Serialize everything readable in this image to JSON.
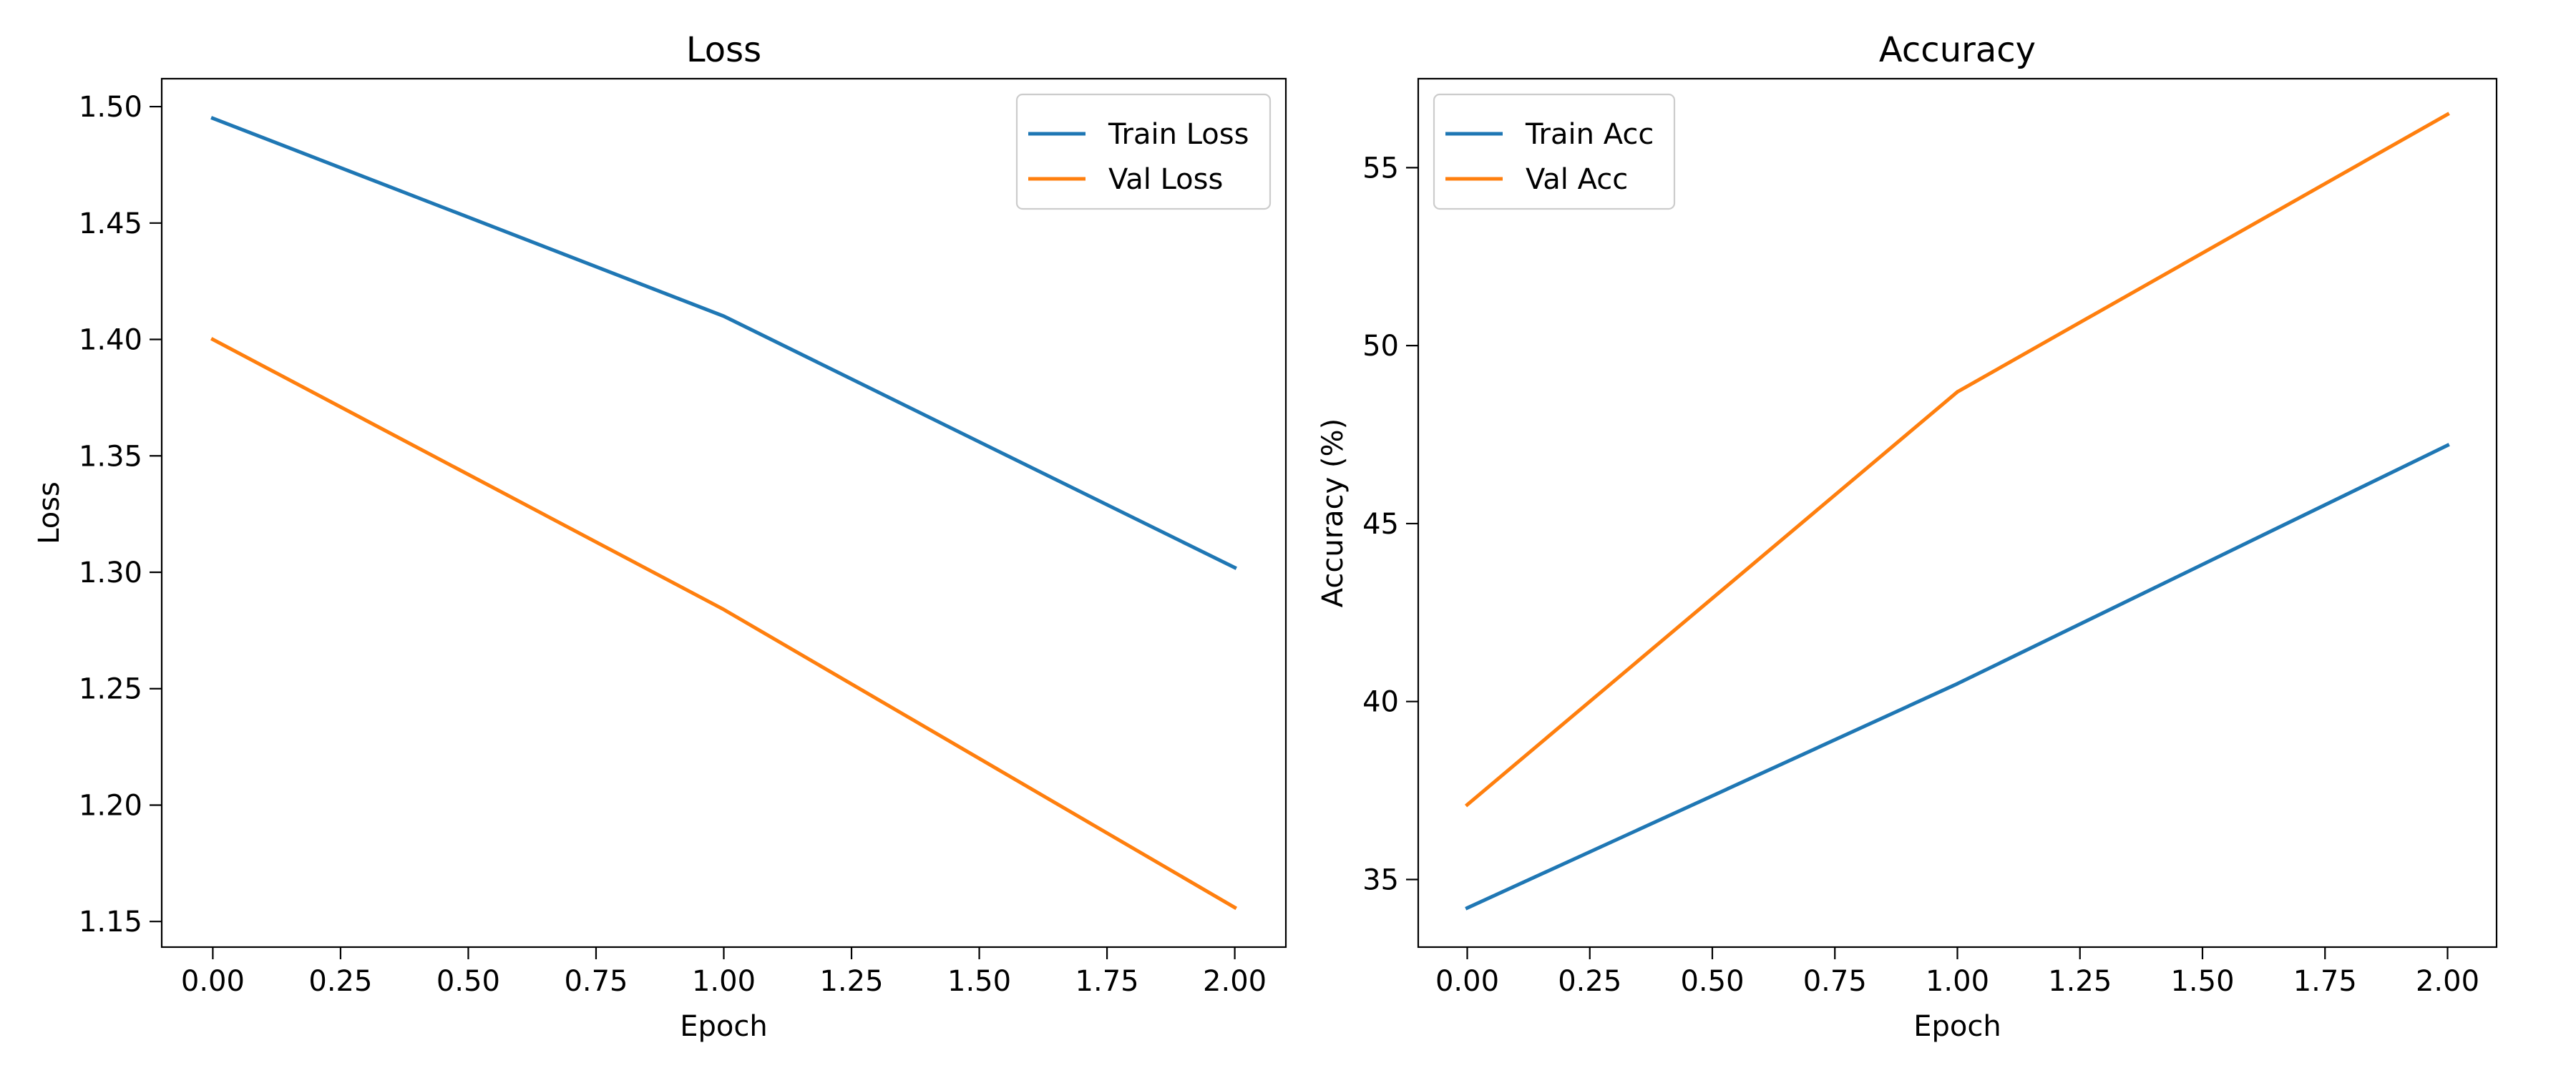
{
  "chart_data": [
    {
      "type": "line",
      "title": "Loss",
      "xlabel": "Epoch",
      "ylabel": "Loss",
      "xlim": [
        -0.1,
        2.1
      ],
      "ylim": [
        1.139,
        1.512
      ],
      "x_ticks": [
        0.0,
        0.25,
        0.5,
        0.75,
        1.0,
        1.25,
        1.5,
        1.75,
        2.0
      ],
      "x_tick_labels": [
        "0.00",
        "0.25",
        "0.50",
        "0.75",
        "1.00",
        "1.25",
        "1.50",
        "1.75",
        "2.00"
      ],
      "y_ticks": [
        1.15,
        1.2,
        1.25,
        1.3,
        1.35,
        1.4,
        1.45,
        1.5
      ],
      "y_tick_labels": [
        "1.15",
        "1.20",
        "1.25",
        "1.30",
        "1.35",
        "1.40",
        "1.45",
        "1.50"
      ],
      "legend_position": "top-right",
      "grid": false,
      "x": [
        0,
        1,
        2
      ],
      "series": [
        {
          "name": "Train Loss",
          "color": "#1f77b4",
          "values": [
            1.495,
            1.41,
            1.302
          ]
        },
        {
          "name": "Val Loss",
          "color": "#ff7f0e",
          "values": [
            1.4,
            1.284,
            1.156
          ]
        }
      ]
    },
    {
      "type": "line",
      "title": "Accuracy",
      "xlabel": "Epoch",
      "ylabel": "Accuracy (%)",
      "xlim": [
        -0.1,
        2.1
      ],
      "ylim": [
        33.1,
        57.5
      ],
      "x_ticks": [
        0.0,
        0.25,
        0.5,
        0.75,
        1.0,
        1.25,
        1.5,
        1.75,
        2.0
      ],
      "x_tick_labels": [
        "0.00",
        "0.25",
        "0.50",
        "0.75",
        "1.00",
        "1.25",
        "1.50",
        "1.75",
        "2.00"
      ],
      "y_ticks": [
        35,
        40,
        45,
        50,
        55
      ],
      "y_tick_labels": [
        "35",
        "40",
        "45",
        "50",
        "55"
      ],
      "legend_position": "top-left",
      "grid": false,
      "x": [
        0,
        1,
        2
      ],
      "series": [
        {
          "name": "Train Acc",
          "color": "#1f77b4",
          "values": [
            34.2,
            40.5,
            47.2
          ]
        },
        {
          "name": "Val Acc",
          "color": "#ff7f0e",
          "values": [
            37.1,
            48.7,
            56.5
          ]
        }
      ]
    }
  ]
}
